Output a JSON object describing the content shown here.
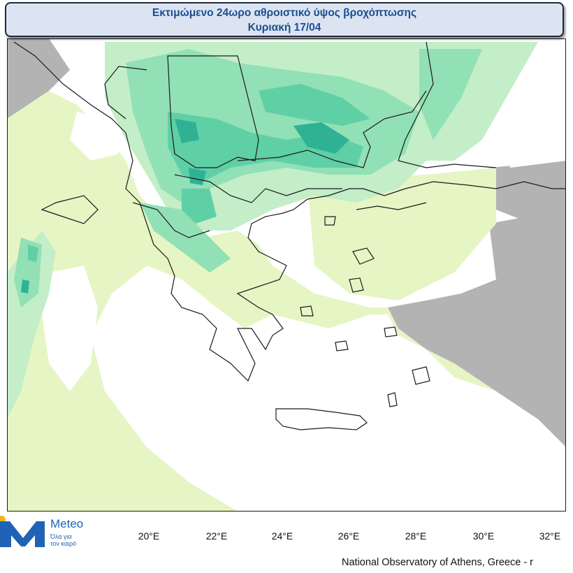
{
  "header": {
    "title_line1": "Εκτιμώμενο 24ωρο αθροιστικό ύψος βροχόπτωσης",
    "title_line2": "Κυριακή 17/04"
  },
  "map": {
    "x_axis": {
      "tick_labels": [
        "20°E",
        "22°E",
        "24°E",
        "26°E",
        "28°E",
        "30°E",
        "32°E"
      ]
    },
    "precipitation_colors": {
      "light": "#e6f5c4",
      "low": "#c3eec8",
      "medium": "#92e0b6",
      "high": "#5fcfa6",
      "very_high": "#2eb293",
      "no_data_land": "#b3b3b3"
    }
  },
  "branding": {
    "logo_word": "Meteo",
    "logo_tagline_1": "Όλα για",
    "logo_tagline_2": "τον καιρό",
    "logo_color": "#1e63b5"
  },
  "credit": "National Observatory of Athens, Greece - r"
}
